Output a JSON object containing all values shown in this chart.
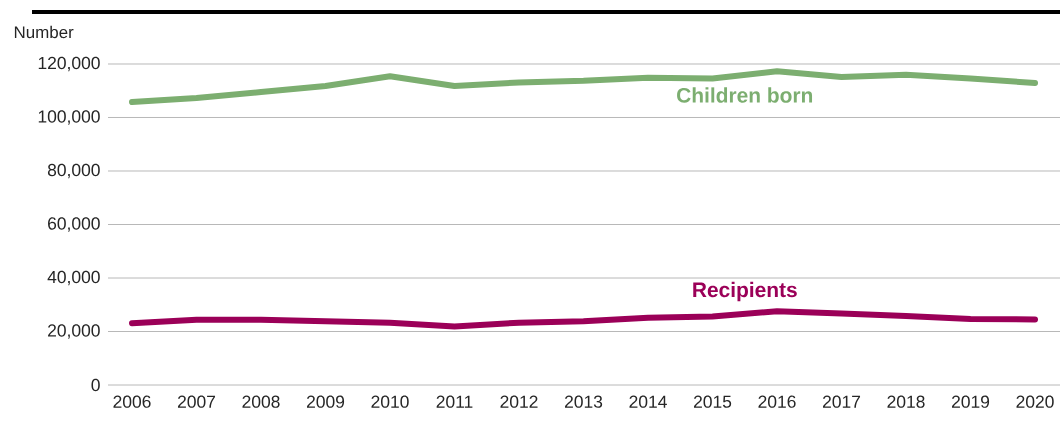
{
  "chart_data": {
    "type": "line",
    "ylabel": "Number",
    "categories": [
      "2006",
      "2007",
      "2008",
      "2009",
      "2010",
      "2011",
      "2012",
      "2013",
      "2014",
      "2015",
      "2016",
      "2017",
      "2018",
      "2019",
      "2020"
    ],
    "series": [
      {
        "name": "Children born",
        "color": "#7cae70",
        "values": [
          105800,
          107300,
          109500,
          111800,
          115400,
          111800,
          113100,
          113700,
          114900,
          114600,
          117300,
          115100,
          116000,
          114600,
          112900
        ]
      },
      {
        "name": "Recipients",
        "color": "#9b0058",
        "values": [
          23100,
          24400,
          24400,
          23800,
          23300,
          21900,
          23300,
          23800,
          25100,
          25600,
          27600,
          26700,
          25800,
          24700,
          24500
        ]
      }
    ],
    "ylim": [
      0,
      120000
    ],
    "yticks": [
      {
        "value": 0,
        "label": "0"
      },
      {
        "value": 20000,
        "label": "20,000"
      },
      {
        "value": 40000,
        "label": "40,000"
      },
      {
        "value": 60000,
        "label": "60,000"
      },
      {
        "value": 80000,
        "label": "80,000"
      },
      {
        "value": 100000,
        "label": "100,000"
      },
      {
        "value": 120000,
        "label": "120,000"
      }
    ],
    "grid": "y",
    "legend": false,
    "marker": "none",
    "line_style": "solid"
  }
}
